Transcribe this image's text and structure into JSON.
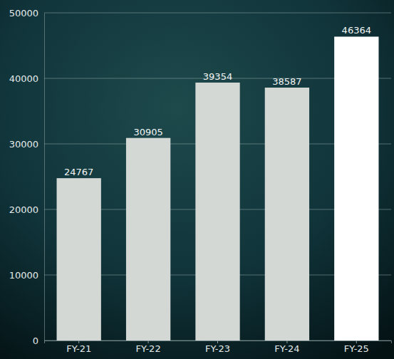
{
  "chart_data": {
    "type": "bar",
    "categories": [
      "FY-21",
      "FY-22",
      "FY-23",
      "FY-24",
      "FY-25"
    ],
    "values": [
      24767,
      30905,
      39354,
      38587,
      46364
    ],
    "colors": [
      "#d3d8d5",
      "#d3d8d5",
      "#d3d8d5",
      "#d3d8d5",
      "#ffffff"
    ],
    "ylim": [
      0,
      50000
    ],
    "yticks": [
      0,
      10000,
      20000,
      30000,
      40000,
      50000
    ],
    "grid": true,
    "data_labels": true
  }
}
